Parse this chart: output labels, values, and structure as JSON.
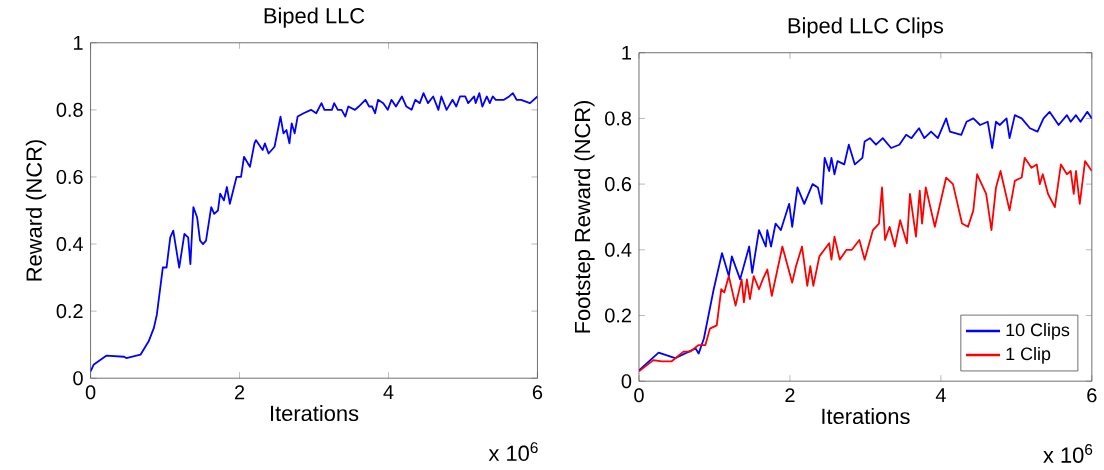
{
  "chart_data": [
    {
      "type": "line",
      "title": "Biped LLC",
      "xlabel": "Iterations",
      "ylabel": "Reward (NCR)",
      "annotations": [
        "x 10$^{6}$"
      ],
      "xlim": [
        0,
        6
      ],
      "ylim": [
        0,
        1
      ],
      "xticks": [
        0,
        2,
        4,
        6
      ],
      "yticks": [
        0,
        0.2,
        0.4,
        0.6,
        0.8,
        1
      ],
      "marker": "none",
      "legend": false,
      "series": [
        {
          "color": "#0000ff",
          "x": [
            0,
            0.04,
            0.21,
            0.45,
            0.48,
            0.67,
            0.78,
            0.85,
            0.89,
            0.97,
            1.02,
            1.07,
            1.11,
            1.19,
            1.26,
            1.31,
            1.34,
            1.38,
            1.43,
            1.47,
            1.51,
            1.55,
            1.62,
            1.66,
            1.71,
            1.74,
            1.79,
            1.83,
            1.87,
            1.96,
            2.02,
            2.06,
            2.14,
            2.2,
            2.22,
            2.31,
            2.34,
            2.39,
            2.47,
            2.55,
            2.59,
            2.63,
            2.67,
            2.7,
            2.74,
            2.78,
            2.86,
            2.96,
            3.03,
            3.1,
            3.14,
            3.24,
            3.27,
            3.32,
            3.37,
            3.42,
            3.46,
            3.55,
            3.6,
            3.69,
            3.74,
            3.78,
            3.82,
            3.86,
            3.93,
            3.99,
            4.04,
            4.1,
            4.18,
            4.24,
            4.31,
            4.36,
            4.42,
            4.47,
            4.53,
            4.6,
            4.67,
            4.71,
            4.78,
            4.86,
            4.91,
            4.96,
            5.03,
            5.07,
            5.15,
            5.17,
            5.22,
            5.26,
            5.32,
            5.36,
            5.4,
            5.44,
            5.52,
            5.55,
            5.62,
            5.67,
            5.72,
            5.78,
            5.9,
            6.0
          ],
          "values": [
            0.02,
            0.04,
            0.067,
            0.064,
            0.06,
            0.07,
            0.11,
            0.15,
            0.19,
            0.33,
            0.33,
            0.42,
            0.44,
            0.33,
            0.43,
            0.42,
            0.34,
            0.51,
            0.48,
            0.41,
            0.4,
            0.41,
            0.51,
            0.49,
            0.5,
            0.55,
            0.53,
            0.57,
            0.52,
            0.6,
            0.6,
            0.66,
            0.63,
            0.7,
            0.71,
            0.68,
            0.7,
            0.67,
            0.69,
            0.78,
            0.73,
            0.74,
            0.7,
            0.76,
            0.73,
            0.78,
            0.79,
            0.8,
            0.79,
            0.82,
            0.8,
            0.8,
            0.82,
            0.8,
            0.8,
            0.78,
            0.81,
            0.8,
            0.81,
            0.83,
            0.81,
            0.81,
            0.79,
            0.83,
            0.82,
            0.8,
            0.83,
            0.81,
            0.84,
            0.81,
            0.8,
            0.83,
            0.82,
            0.85,
            0.82,
            0.84,
            0.8,
            0.84,
            0.8,
            0.83,
            0.81,
            0.84,
            0.84,
            0.82,
            0.84,
            0.82,
            0.85,
            0.81,
            0.84,
            0.82,
            0.84,
            0.83,
            0.83,
            0.83,
            0.84,
            0.85,
            0.83,
            0.83,
            0.82,
            0.84
          ]
        }
      ]
    },
    {
      "type": "line",
      "title": "Biped LLC Clips",
      "xlabel": "Iterations",
      "ylabel": "Footstep Reward (NCR)",
      "annotations": [
        "x 10$^{6}$"
      ],
      "xlim": [
        0,
        6
      ],
      "ylim": [
        0,
        1
      ],
      "xticks": [
        0,
        2,
        4,
        6
      ],
      "yticks": [
        0,
        0.2,
        0.4,
        0.6,
        0.8,
        1
      ],
      "marker": "none",
      "legend": "bottom right",
      "series": [
        {
          "name": "10 Clips",
          "color": "#0000ff",
          "x": [
            0,
            0.26,
            0.48,
            0.75,
            0.79,
            0.86,
            0.99,
            1.1,
            1.19,
            1.23,
            1.34,
            1.46,
            1.5,
            1.59,
            1.68,
            1.7,
            1.75,
            1.81,
            1.88,
            1.99,
            2.03,
            2.1,
            2.19,
            2.3,
            2.37,
            2.42,
            2.46,
            2.52,
            2.55,
            2.59,
            2.63,
            2.72,
            2.78,
            2.86,
            2.96,
            2.99,
            3.06,
            3.14,
            3.23,
            3.34,
            3.45,
            3.54,
            3.61,
            3.71,
            3.78,
            3.87,
            3.96,
            4.07,
            4.12,
            4.27,
            4.34,
            4.43,
            4.52,
            4.62,
            4.68,
            4.73,
            4.78,
            4.87,
            4.91,
            4.98,
            5.07,
            5.18,
            5.28,
            5.36,
            5.44,
            5.56,
            5.67,
            5.72,
            5.79,
            5.85,
            5.94,
            6.0
          ],
          "values": [
            0.033,
            0.087,
            0.07,
            0.1,
            0.084,
            0.13,
            0.28,
            0.39,
            0.32,
            0.38,
            0.31,
            0.41,
            0.33,
            0.46,
            0.41,
            0.46,
            0.41,
            0.48,
            0.46,
            0.54,
            0.47,
            0.59,
            0.54,
            0.6,
            0.59,
            0.54,
            0.68,
            0.64,
            0.68,
            0.63,
            0.67,
            0.66,
            0.72,
            0.66,
            0.68,
            0.73,
            0.74,
            0.72,
            0.74,
            0.71,
            0.72,
            0.75,
            0.74,
            0.77,
            0.74,
            0.76,
            0.74,
            0.8,
            0.76,
            0.75,
            0.79,
            0.8,
            0.78,
            0.79,
            0.71,
            0.79,
            0.78,
            0.8,
            0.74,
            0.81,
            0.8,
            0.77,
            0.76,
            0.8,
            0.82,
            0.78,
            0.81,
            0.79,
            0.81,
            0.79,
            0.82,
            0.8
          ]
        },
        {
          "name": "1 Clip",
          "color": "#ff0000",
          "x": [
            0,
            0.19,
            0.3,
            0.43,
            0.59,
            0.68,
            0.79,
            0.88,
            0.94,
            1.03,
            1.09,
            1.13,
            1.19,
            1.28,
            1.36,
            1.39,
            1.43,
            1.47,
            1.52,
            1.59,
            1.64,
            1.7,
            1.76,
            1.9,
            2.03,
            2.08,
            2.16,
            2.23,
            2.27,
            2.31,
            2.39,
            2.52,
            2.55,
            2.59,
            2.66,
            2.75,
            2.82,
            2.92,
            2.99,
            3.1,
            3.18,
            3.22,
            3.26,
            3.32,
            3.39,
            3.46,
            3.55,
            3.59,
            3.67,
            3.72,
            3.75,
            3.8,
            3.92,
            4.07,
            4.16,
            4.28,
            4.36,
            4.43,
            4.48,
            4.6,
            4.67,
            4.73,
            4.79,
            4.91,
            4.98,
            5.07,
            5.11,
            5.2,
            5.27,
            5.31,
            5.35,
            5.42,
            5.51,
            5.59,
            5.67,
            5.72,
            5.76,
            5.79,
            5.84,
            5.91,
            6.0
          ],
          "values": [
            0.03,
            0.064,
            0.06,
            0.06,
            0.09,
            0.09,
            0.11,
            0.11,
            0.16,
            0.17,
            0.28,
            0.27,
            0.32,
            0.23,
            0.31,
            0.24,
            0.31,
            0.25,
            0.32,
            0.28,
            0.31,
            0.34,
            0.26,
            0.41,
            0.3,
            0.35,
            0.41,
            0.29,
            0.35,
            0.29,
            0.38,
            0.42,
            0.37,
            0.44,
            0.37,
            0.4,
            0.4,
            0.43,
            0.37,
            0.46,
            0.48,
            0.59,
            0.43,
            0.47,
            0.41,
            0.49,
            0.42,
            0.57,
            0.44,
            0.58,
            0.48,
            0.59,
            0.47,
            0.62,
            0.6,
            0.48,
            0.47,
            0.52,
            0.63,
            0.57,
            0.46,
            0.59,
            0.64,
            0.52,
            0.61,
            0.62,
            0.68,
            0.65,
            0.66,
            0.6,
            0.63,
            0.57,
            0.53,
            0.66,
            0.63,
            0.64,
            0.57,
            0.64,
            0.54,
            0.67,
            0.64
          ]
        }
      ]
    }
  ]
}
